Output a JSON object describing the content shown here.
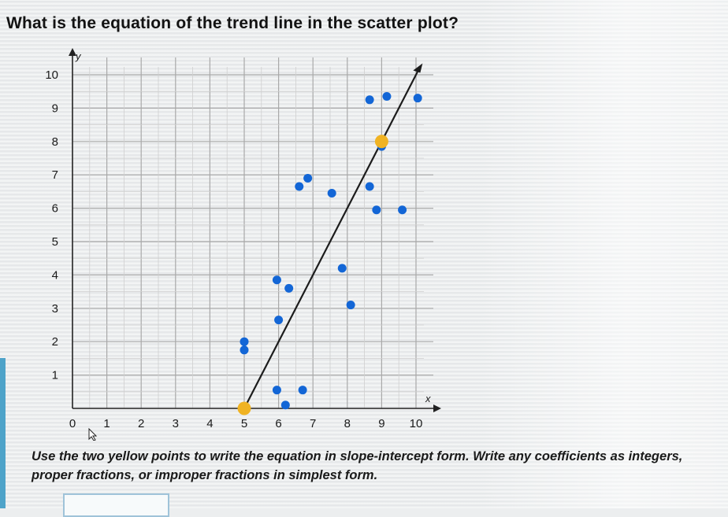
{
  "question": "What is the equation of the trend line in the scatter plot?",
  "instructions": "Use the two yellow points to write the equation in slope-intercept form. Write any coefficients as integers, proper fractions, or improper fractions in simplest form.",
  "answer_input": {
    "value": ""
  },
  "chart_data": {
    "type": "scatter",
    "title": "",
    "xlabel": "x",
    "ylabel": "y",
    "xlim": [
      0,
      10
    ],
    "ylim": [
      0,
      10
    ],
    "x_ticks": [
      "0",
      "1",
      "2",
      "3",
      "4",
      "5",
      "6",
      "7",
      "8",
      "9",
      "10"
    ],
    "y_ticks": [
      "1",
      "2",
      "3",
      "4",
      "5",
      "6",
      "7",
      "8",
      "9",
      "10"
    ],
    "grid": true,
    "points": [
      {
        "x": 8.65,
        "y": 9.25
      },
      {
        "x": 9.15,
        "y": 9.35
      },
      {
        "x": 10.05,
        "y": 9.3
      },
      {
        "x": 9.0,
        "y": 7.85
      },
      {
        "x": 6.6,
        "y": 6.65
      },
      {
        "x": 6.85,
        "y": 6.9
      },
      {
        "x": 7.55,
        "y": 6.45
      },
      {
        "x": 8.65,
        "y": 6.65
      },
      {
        "x": 8.85,
        "y": 5.95
      },
      {
        "x": 9.6,
        "y": 5.95
      },
      {
        "x": 7.85,
        "y": 4.2
      },
      {
        "x": 5.95,
        "y": 3.85
      },
      {
        "x": 6.3,
        "y": 3.6
      },
      {
        "x": 8.1,
        "y": 3.1
      },
      {
        "x": 6.0,
        "y": 2.65
      },
      {
        "x": 5.0,
        "y": 2.0
      },
      {
        "x": 5.0,
        "y": 1.75
      },
      {
        "x": 5.95,
        "y": 0.55
      },
      {
        "x": 6.7,
        "y": 0.55
      },
      {
        "x": 6.2,
        "y": 0.1
      }
    ],
    "highlight_points": [
      {
        "x": 5,
        "y": 0
      },
      {
        "x": 9,
        "y": 8
      }
    ],
    "trend_line": {
      "x_start": 5,
      "y_start": 0,
      "x_end": 10.1,
      "y_end": 10.2
    },
    "colors": {
      "point": "#1366d6",
      "highlight": "#f0b323",
      "line": "#1c1c1c",
      "grid": "#a9a9a9"
    }
  }
}
